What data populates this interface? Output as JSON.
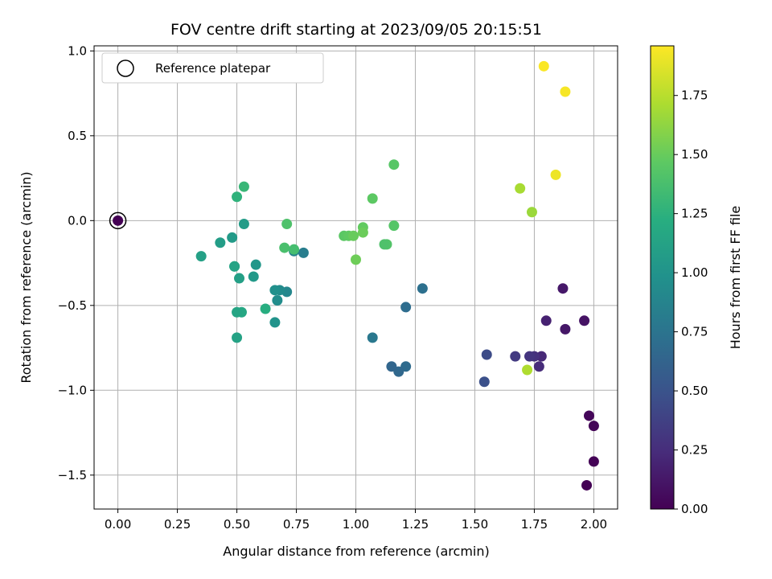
{
  "chart_data": {
    "type": "scatter",
    "title": "FOV centre drift starting at 2023/09/05 20:15:51",
    "xlabel": "Angular distance from reference (arcmin)",
    "ylabel": "Rotation from reference (arcmin)",
    "xlim": [
      -0.1,
      2.1
    ],
    "ylim": [
      -1.7,
      1.03
    ],
    "x_ticks": [
      "0.00",
      "0.25",
      "0.50",
      "0.75",
      "1.00",
      "1.25",
      "1.50",
      "1.75",
      "2.00"
    ],
    "y_ticks": [
      "1.0",
      "0.5",
      "0.0",
      "−0.5",
      "−1.0",
      "−1.5"
    ],
    "grid": true,
    "legend": {
      "position": "top-left",
      "entries": [
        "Reference platepar"
      ]
    },
    "colorbar": {
      "label": "Hours from first FF file",
      "colormap": "viridis",
      "range": [
        0.0,
        1.96
      ],
      "ticks": [
        "0.00",
        "0.25",
        "0.50",
        "0.75",
        "1.00",
        "1.25",
        "1.50",
        "1.75"
      ]
    },
    "reference_point": {
      "x": 0.0,
      "y": 0.0
    },
    "points": [
      {
        "x": 1.97,
        "y": -1.56,
        "h": 0.0
      },
      {
        "x": 2.0,
        "y": -1.42,
        "h": 0.01
      },
      {
        "x": 2.0,
        "y": -1.21,
        "h": 0.02
      },
      {
        "x": 1.98,
        "y": -1.15,
        "h": 0.03
      },
      {
        "x": 0.0,
        "y": 0.0,
        "h": 0.0
      },
      {
        "x": 1.96,
        "y": -0.59,
        "h": 0.1
      },
      {
        "x": 1.88,
        "y": -0.64,
        "h": 0.12
      },
      {
        "x": 1.87,
        "y": -0.4,
        "h": 0.13
      },
      {
        "x": 1.8,
        "y": -0.59,
        "h": 0.18
      },
      {
        "x": 1.78,
        "y": -0.8,
        "h": 0.22
      },
      {
        "x": 1.77,
        "y": -0.86,
        "h": 0.24
      },
      {
        "x": 1.75,
        "y": -0.8,
        "h": 0.27
      },
      {
        "x": 1.73,
        "y": -0.8,
        "h": 0.3
      },
      {
        "x": 1.67,
        "y": -0.8,
        "h": 0.33
      },
      {
        "x": 1.55,
        "y": -0.79,
        "h": 0.45
      },
      {
        "x": 1.54,
        "y": -0.95,
        "h": 0.48
      },
      {
        "x": 1.28,
        "y": -0.4,
        "h": 0.72
      },
      {
        "x": 1.21,
        "y": -0.51,
        "h": 0.7
      },
      {
        "x": 1.21,
        "y": -0.86,
        "h": 0.68
      },
      {
        "x": 1.18,
        "y": -0.89,
        "h": 0.66
      },
      {
        "x": 1.15,
        "y": -0.86,
        "h": 0.64
      },
      {
        "x": 1.07,
        "y": -0.69,
        "h": 0.78
      },
      {
        "x": 0.78,
        "y": -0.19,
        "h": 0.82
      },
      {
        "x": 0.74,
        "y": -0.18,
        "h": 0.87
      },
      {
        "x": 0.71,
        "y": -0.42,
        "h": 0.9
      },
      {
        "x": 0.68,
        "y": -0.41,
        "h": 0.93
      },
      {
        "x": 0.67,
        "y": -0.47,
        "h": 0.95
      },
      {
        "x": 0.66,
        "y": -0.41,
        "h": 0.97
      },
      {
        "x": 0.66,
        "y": -0.6,
        "h": 1.0
      },
      {
        "x": 0.62,
        "y": -0.52,
        "h": 1.22
      },
      {
        "x": 0.58,
        "y": -0.26,
        "h": 1.03
      },
      {
        "x": 0.57,
        "y": -0.33,
        "h": 1.05
      },
      {
        "x": 0.53,
        "y": -0.02,
        "h": 1.07
      },
      {
        "x": 0.51,
        "y": -0.34,
        "h": 1.1
      },
      {
        "x": 0.52,
        "y": -0.54,
        "h": 1.17
      },
      {
        "x": 0.5,
        "y": -0.54,
        "h": 1.15
      },
      {
        "x": 0.49,
        "y": -0.27,
        "h": 1.19
      },
      {
        "x": 0.49,
        "y": -0.27,
        "h": 1.13
      },
      {
        "x": 0.5,
        "y": -0.69,
        "h": 1.12
      },
      {
        "x": 0.48,
        "y": -0.1,
        "h": 1.06
      },
      {
        "x": 0.5,
        "y": 0.14,
        "h": 1.26
      },
      {
        "x": 0.53,
        "y": 0.2,
        "h": 1.3
      },
      {
        "x": 0.43,
        "y": -0.13,
        "h": 1.08
      },
      {
        "x": 0.35,
        "y": -0.21,
        "h": 1.11
      },
      {
        "x": 0.7,
        "y": -0.16,
        "h": 1.38
      },
      {
        "x": 0.71,
        "y": -0.02,
        "h": 1.4
      },
      {
        "x": 0.74,
        "y": -0.17,
        "h": 1.36
      },
      {
        "x": 0.95,
        "y": -0.09,
        "h": 1.45
      },
      {
        "x": 0.97,
        "y": -0.09,
        "h": 1.47
      },
      {
        "x": 0.99,
        "y": -0.09,
        "h": 1.5
      },
      {
        "x": 1.0,
        "y": -0.23,
        "h": 1.52
      },
      {
        "x": 1.03,
        "y": -0.04,
        "h": 1.48
      },
      {
        "x": 1.03,
        "y": -0.07,
        "h": 1.51
      },
      {
        "x": 1.07,
        "y": 0.13,
        "h": 1.46
      },
      {
        "x": 1.13,
        "y": -0.14,
        "h": 1.42
      },
      {
        "x": 1.12,
        "y": -0.14,
        "h": 1.4
      },
      {
        "x": 1.16,
        "y": 0.33,
        "h": 1.44
      },
      {
        "x": 1.16,
        "y": -0.03,
        "h": 1.43
      },
      {
        "x": 1.72,
        "y": -0.88,
        "h": 1.72
      },
      {
        "x": 1.69,
        "y": 0.19,
        "h": 1.7
      },
      {
        "x": 1.74,
        "y": 0.05,
        "h": 1.66
      },
      {
        "x": 1.84,
        "y": 0.27,
        "h": 1.91
      },
      {
        "x": 1.79,
        "y": 0.91,
        "h": 1.95
      },
      {
        "x": 1.88,
        "y": 0.76,
        "h": 1.94
      }
    ]
  }
}
